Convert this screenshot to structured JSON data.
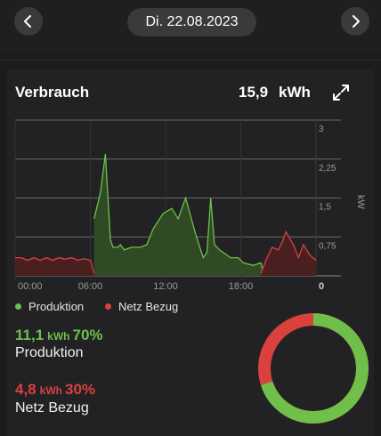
{
  "header": {
    "date": "Di. 22.08.2023",
    "prev_icon": "chevron-left-icon",
    "next_icon": "chevron-right-icon"
  },
  "card": {
    "title": "Verbrauch",
    "value": "15,9",
    "unit": "kWh",
    "expand_icon": "expand-icon"
  },
  "chart_data": {
    "type": "area",
    "x_ticks": [
      "00:00",
      "06:00",
      "12:00",
      "18:00"
    ],
    "y_ticks": [
      "0",
      "0,75",
      "1,5",
      "2,25",
      "3"
    ],
    "ylabel": "kW",
    "x_range_hours": [
      0,
      24
    ],
    "ylim": [
      0,
      3
    ],
    "grid": true,
    "series": [
      {
        "name": "Produktion",
        "color": "#6fbf4a",
        "x": [
          6.3,
          6.8,
          7.2,
          7.6,
          7.8,
          8.2,
          8.4,
          8.7,
          9.3,
          10.0,
          10.5,
          11.0,
          11.8,
          12.5,
          13.0,
          13.6,
          14.4,
          15.0,
          15.3,
          15.6,
          15.9,
          16.3,
          16.6,
          17.2,
          17.8,
          18.2,
          19.0,
          19.6,
          19.8
        ],
        "values": [
          1.1,
          1.6,
          2.35,
          0.7,
          0.55,
          0.55,
          0.6,
          0.5,
          0.55,
          0.55,
          0.6,
          0.9,
          1.2,
          1.3,
          1.1,
          1.5,
          0.8,
          0.35,
          0.45,
          1.5,
          0.6,
          0.5,
          0.45,
          0.35,
          0.35,
          0.25,
          0.2,
          0.25,
          0.05
        ]
      },
      {
        "name": "Netz Bezug",
        "color": "#d9413f",
        "x": [
          0,
          0.5,
          1.0,
          1.5,
          2.0,
          2.5,
          3.0,
          3.5,
          4.0,
          4.5,
          5.0,
          5.5,
          6.0,
          6.3,
          19.6,
          20.0,
          20.5,
          21.0,
          21.3,
          21.6,
          22.2,
          22.6,
          23.0,
          23.5,
          24.0
        ],
        "values": [
          0.35,
          0.35,
          0.3,
          0.35,
          0.3,
          0.35,
          0.3,
          0.35,
          0.32,
          0.35,
          0.3,
          0.33,
          0.3,
          0.05,
          0.05,
          0.3,
          0.55,
          0.5,
          0.65,
          0.85,
          0.6,
          0.35,
          0.6,
          0.4,
          0.3
        ]
      }
    ]
  },
  "legend": [
    {
      "label": "Produktion",
      "color": "#6fbf4a"
    },
    {
      "label": "Netz Bezug",
      "color": "#d9413f"
    }
  ],
  "stats": {
    "production": {
      "value": "11,1",
      "unit": "kWh",
      "percent": "70%",
      "label": "Produktion",
      "color": "#6fbf4a"
    },
    "grid": {
      "value": "4,8",
      "unit": "kWh",
      "percent": "30%",
      "label": "Netz Bezug",
      "color": "#d9413f"
    }
  },
  "donut": {
    "production_share": 0.7,
    "grid_share": 0.3
  }
}
